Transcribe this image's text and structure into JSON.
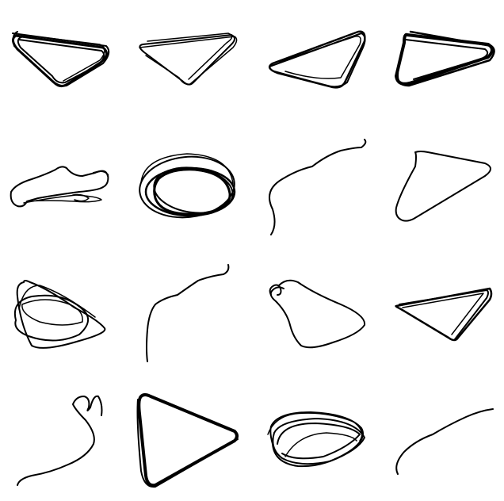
{
  "grid": {
    "rows": 4,
    "columns": 4,
    "cell_count": 16
  },
  "colors": {
    "background": "#ffffff",
    "ink": "#000000"
  },
  "sketches": [
    {
      "name": "sketch-triangle-dense",
      "kind": "triangle"
    },
    {
      "name": "sketch-triangle-loose",
      "kind": "triangle"
    },
    {
      "name": "sketch-triangle-flat",
      "kind": "triangle"
    },
    {
      "name": "sketch-triangle-bold",
      "kind": "triangle"
    },
    {
      "name": "sketch-scribble-horizontal",
      "kind": "scribble"
    },
    {
      "name": "sketch-scribble-ellipse",
      "kind": "scribble"
    },
    {
      "name": "sketch-wavy-line",
      "kind": "line"
    },
    {
      "name": "sketch-triangle-smooth",
      "kind": "triangle"
    },
    {
      "name": "sketch-scribble-loops",
      "kind": "scribble"
    },
    {
      "name": "sketch-curved-line",
      "kind": "line"
    },
    {
      "name": "sketch-blob-hook",
      "kind": "blob"
    },
    {
      "name": "sketch-triangle-thin",
      "kind": "triangle"
    },
    {
      "name": "sketch-hooked-line",
      "kind": "line"
    },
    {
      "name": "sketch-triangle-large",
      "kind": "triangle"
    },
    {
      "name": "sketch-scribble-dense",
      "kind": "scribble"
    },
    {
      "name": "sketch-arc-line",
      "kind": "line"
    }
  ]
}
